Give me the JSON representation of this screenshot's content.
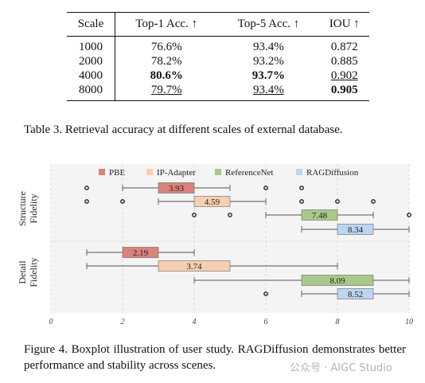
{
  "table": {
    "headers": [
      "Scale",
      "Top-1 Acc. ↑",
      "Top-5 Acc. ↑",
      "IOU ↑"
    ],
    "rows": [
      {
        "scale": "1000",
        "top1": "76.6%",
        "top5": "93.4%",
        "iou": "0.872"
      },
      {
        "scale": "2000",
        "top1": "78.2%",
        "top5": "93.2%",
        "iou": "0.885"
      },
      {
        "scale": "4000",
        "top1": "80.6%",
        "top5": "93.7%",
        "iou": "0.902"
      },
      {
        "scale": "8000",
        "top1": "79.7%",
        "top5": "93.4%",
        "iou": "0.905"
      }
    ],
    "caption": "Table 3. Retrieval accuracy at different scales of external database."
  },
  "figure": {
    "caption": "Figure 4.   Boxplot illustration of user study.   RAGDiffusion demonstrates better performance and stability across scenes."
  },
  "watermark": "公众号 · AIGC Studio",
  "chart_data": {
    "type": "boxplot",
    "orientation": "horizontal",
    "xlim": [
      0,
      10
    ],
    "xticks": [
      "0",
      "2",
      "4",
      "6",
      "8",
      "10"
    ],
    "groups": [
      "Structure Fidelity",
      "Detail Fidelity"
    ],
    "legend": [
      {
        "name": "PBE",
        "color": "#d9837a"
      },
      {
        "name": "IP-Adapter",
        "color": "#f7cfb0"
      },
      {
        "name": "ReferenceNet",
        "color": "#a9c98a"
      },
      {
        "name": "RAGDiffusion",
        "color": "#bcd5f0"
      }
    ],
    "legend_position": "top",
    "boxes": [
      {
        "group": "Structure Fidelity",
        "method": "PBE",
        "whisker_low": 2,
        "q1": 3,
        "median": 3.93,
        "q3": 4,
        "whisker_high": 5,
        "label": "3.93",
        "outliers": [
          1,
          6,
          7
        ],
        "color": "#d9837a"
      },
      {
        "group": "Structure Fidelity",
        "method": "IP-Adapter",
        "whisker_low": 3,
        "q1": 4,
        "median": 4.59,
        "q3": 5,
        "whisker_high": 6,
        "label": "4.59",
        "outliers": [
          1,
          2,
          7,
          8,
          9
        ],
        "color": "#f7cfb0"
      },
      {
        "group": "Structure Fidelity",
        "method": "ReferenceNet",
        "whisker_low": 6,
        "q1": 7,
        "median": 7.48,
        "q3": 8,
        "whisker_high": 9,
        "label": "7.48",
        "outliers": [
          4,
          5,
          10
        ],
        "color": "#a9c98a"
      },
      {
        "group": "Structure Fidelity",
        "method": "RAGDiffusion",
        "whisker_low": 7,
        "q1": 8,
        "median": 8.34,
        "q3": 9,
        "whisker_high": 10,
        "label": "8.34",
        "outliers": [],
        "color": "#bcd5f0"
      },
      {
        "group": "Detail Fidelity",
        "method": "PBE",
        "whisker_low": 1,
        "q1": 2,
        "median": 2.19,
        "q3": 3,
        "whisker_high": 4,
        "label": "2.19",
        "outliers": [],
        "color": "#d9837a"
      },
      {
        "group": "Detail Fidelity",
        "method": "IP-Adapter",
        "whisker_low": 1,
        "q1": 3,
        "median": 3.74,
        "q3": 5,
        "whisker_high": 8,
        "label": "3.74",
        "outliers": [],
        "color": "#f7cfb0"
      },
      {
        "group": "Detail Fidelity",
        "method": "ReferenceNet",
        "whisker_low": 4,
        "q1": 7,
        "median": 8.09,
        "q3": 9,
        "whisker_high": 10,
        "label": "8.09",
        "outliers": [],
        "color": "#a9c98a"
      },
      {
        "group": "Detail Fidelity",
        "method": "RAGDiffusion",
        "whisker_low": 7,
        "q1": 8,
        "median": 8.52,
        "q3": 9,
        "whisker_high": 10,
        "label": "8.52",
        "outliers": [
          6
        ],
        "color": "#bcd5f0"
      }
    ],
    "grid": "vertical dashed"
  }
}
